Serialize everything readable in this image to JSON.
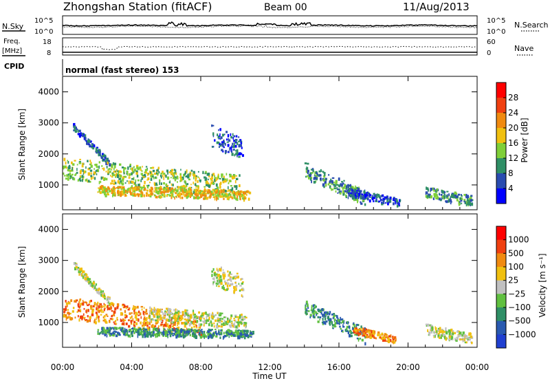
{
  "header": {
    "station": "Zhongshan Station (fitACF)",
    "beam": "Beam 00",
    "date": "11/Aug/2013"
  },
  "status_panels": {
    "nsky_label": "N.Sky",
    "nsearch_label": "N.Search",
    "freq_label_line1": "Freq.",
    "freq_label_line2": "[MHz]",
    "nave_label": "Nave",
    "cpid_label": "CPID",
    "cpid_text": "normal (fast stereo) 153",
    "noise_ticks": [
      "10^5",
      "10^0"
    ],
    "freq_ticks": [
      "18",
      "8"
    ],
    "nave_ticks": [
      "60",
      "0"
    ]
  },
  "chart_data": [
    {
      "type": "heatmap",
      "name": "power",
      "ylabel": "Slant Range [km]",
      "ylim": [
        200,
        4500
      ],
      "yticks": [
        "1000",
        "2000",
        "3000",
        "4000"
      ],
      "xlim_hours": [
        0,
        24
      ],
      "colorbar_label": "Power [dB]",
      "colorbar_ticks": [
        "28",
        "24",
        "20",
        "16",
        "12",
        "8",
        "4"
      ],
      "colors": [
        "#0000ff",
        "#2a4cb0",
        "#2f8f66",
        "#7fcf38",
        "#f0c010",
        "#f08a10",
        "#f04010",
        "#ff0000"
      ],
      "scatter_echoes": [
        {
          "t0": 0.6,
          "t1": 2.7,
          "r0": 2900,
          "r1": 1700,
          "w": 220,
          "level": 1
        },
        {
          "t0": 0.0,
          "t1": 10.2,
          "r0": 1550,
          "r1": 1000,
          "w": 700,
          "level": 3
        },
        {
          "t0": 2.0,
          "t1": 10.8,
          "r0": 850,
          "r1": 700,
          "w": 300,
          "level": 4
        },
        {
          "t0": 8.6,
          "t1": 10.4,
          "r0": 2600,
          "r1": 2200,
          "w": 700,
          "level": 1
        },
        {
          "t0": 14.0,
          "t1": 17.5,
          "r0": 1500,
          "r1": 600,
          "w": 500,
          "level": 2
        },
        {
          "t0": 16.5,
          "t1": 19.5,
          "r0": 800,
          "r1": 450,
          "w": 250,
          "level": 1
        },
        {
          "t0": 21.0,
          "t1": 23.7,
          "r0": 800,
          "r1": 500,
          "w": 350,
          "level": 2
        }
      ]
    },
    {
      "type": "heatmap",
      "name": "velocity",
      "ylabel": "Slant Range [km]",
      "ylim": [
        200,
        4500
      ],
      "yticks": [
        "1000",
        "2000",
        "3000",
        "4000"
      ],
      "xlabel": "Time UT",
      "xticks": [
        "00:00",
        "04:00",
        "08:00",
        "12:00",
        "16:00",
        "20:00",
        "00:00"
      ],
      "xlim_hours": [
        0,
        24
      ],
      "colorbar_label": "Velocity [m s⁻¹]",
      "colorbar_ticks": [
        "1000",
        "500",
        "100",
        "25",
        "−25",
        "−100",
        "−500",
        "−1000"
      ],
      "colors": [
        "#2040d0",
        "#2a5ab0",
        "#2f8f66",
        "#60c040",
        "#c0c0c0",
        "#f0c010",
        "#f08a10",
        "#f04010",
        "#ff0000"
      ],
      "scatter_echoes": [
        {
          "t0": 0.6,
          "t1": 2.7,
          "r0": 2900,
          "r1": 1700,
          "w": 220,
          "level": 4
        },
        {
          "t0": 0.0,
          "t1": 8.0,
          "r0": 1500,
          "r1": 950,
          "w": 700,
          "level": 6
        },
        {
          "t0": 5.0,
          "t1": 10.6,
          "r0": 1300,
          "r1": 1050,
          "w": 450,
          "level": 4
        },
        {
          "t0": 2.0,
          "t1": 11.0,
          "r0": 750,
          "r1": 650,
          "w": 250,
          "level": 2
        },
        {
          "t0": 8.6,
          "t1": 10.4,
          "r0": 2600,
          "r1": 2200,
          "w": 700,
          "level": 4
        },
        {
          "t0": 14.0,
          "t1": 17.5,
          "r0": 1500,
          "r1": 600,
          "w": 500,
          "level": 2
        },
        {
          "t0": 16.8,
          "t1": 19.3,
          "r0": 800,
          "r1": 450,
          "w": 250,
          "level": 6
        },
        {
          "t0": 21.0,
          "t1": 23.7,
          "r0": 800,
          "r1": 500,
          "w": 350,
          "level": 4
        }
      ]
    }
  ]
}
